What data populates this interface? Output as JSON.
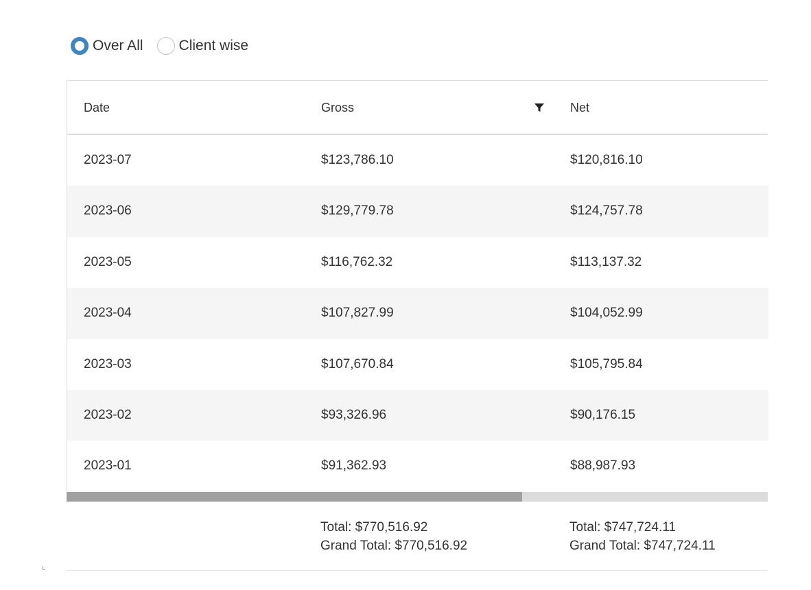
{
  "view_mode": {
    "options": [
      {
        "label": "Over All",
        "selected": true
      },
      {
        "label": "Client wise",
        "selected": false
      }
    ]
  },
  "grid": {
    "columns": [
      "Date",
      "Gross",
      "Net"
    ],
    "filter_icon": "filter-icon",
    "rows": [
      {
        "date": "2023-07",
        "gross": "$123,786.10",
        "net": "$120,816.10"
      },
      {
        "date": "2023-06",
        "gross": "$129,779.78",
        "net": "$124,757.78"
      },
      {
        "date": "2023-05",
        "gross": "$116,762.32",
        "net": "$113,137.32"
      },
      {
        "date": "2023-04",
        "gross": "$107,827.99",
        "net": "$104,052.99"
      },
      {
        "date": "2023-03",
        "gross": "$107,670.84",
        "net": "$105,795.84"
      },
      {
        "date": "2023-02",
        "gross": "$93,326.96",
        "net": "$90,176.15"
      },
      {
        "date": "2023-01",
        "gross": "$91,362.93",
        "net": "$88,987.93"
      }
    ],
    "footer": {
      "gross_total": "Total: $770,516.92",
      "gross_grand_total": "Grand Total: $770,516.92",
      "net_total": "Total: $747,724.11",
      "net_grand_total": "Grand Total: $747,724.11"
    },
    "scroll_fraction_visible": 0.65
  },
  "colors": {
    "accent": "#3b86c6",
    "row_alt": "#f5f5f5",
    "border": "#dedede",
    "scroll_thumb": "#a0a0a0",
    "scroll_track": "#dcdcdc"
  }
}
